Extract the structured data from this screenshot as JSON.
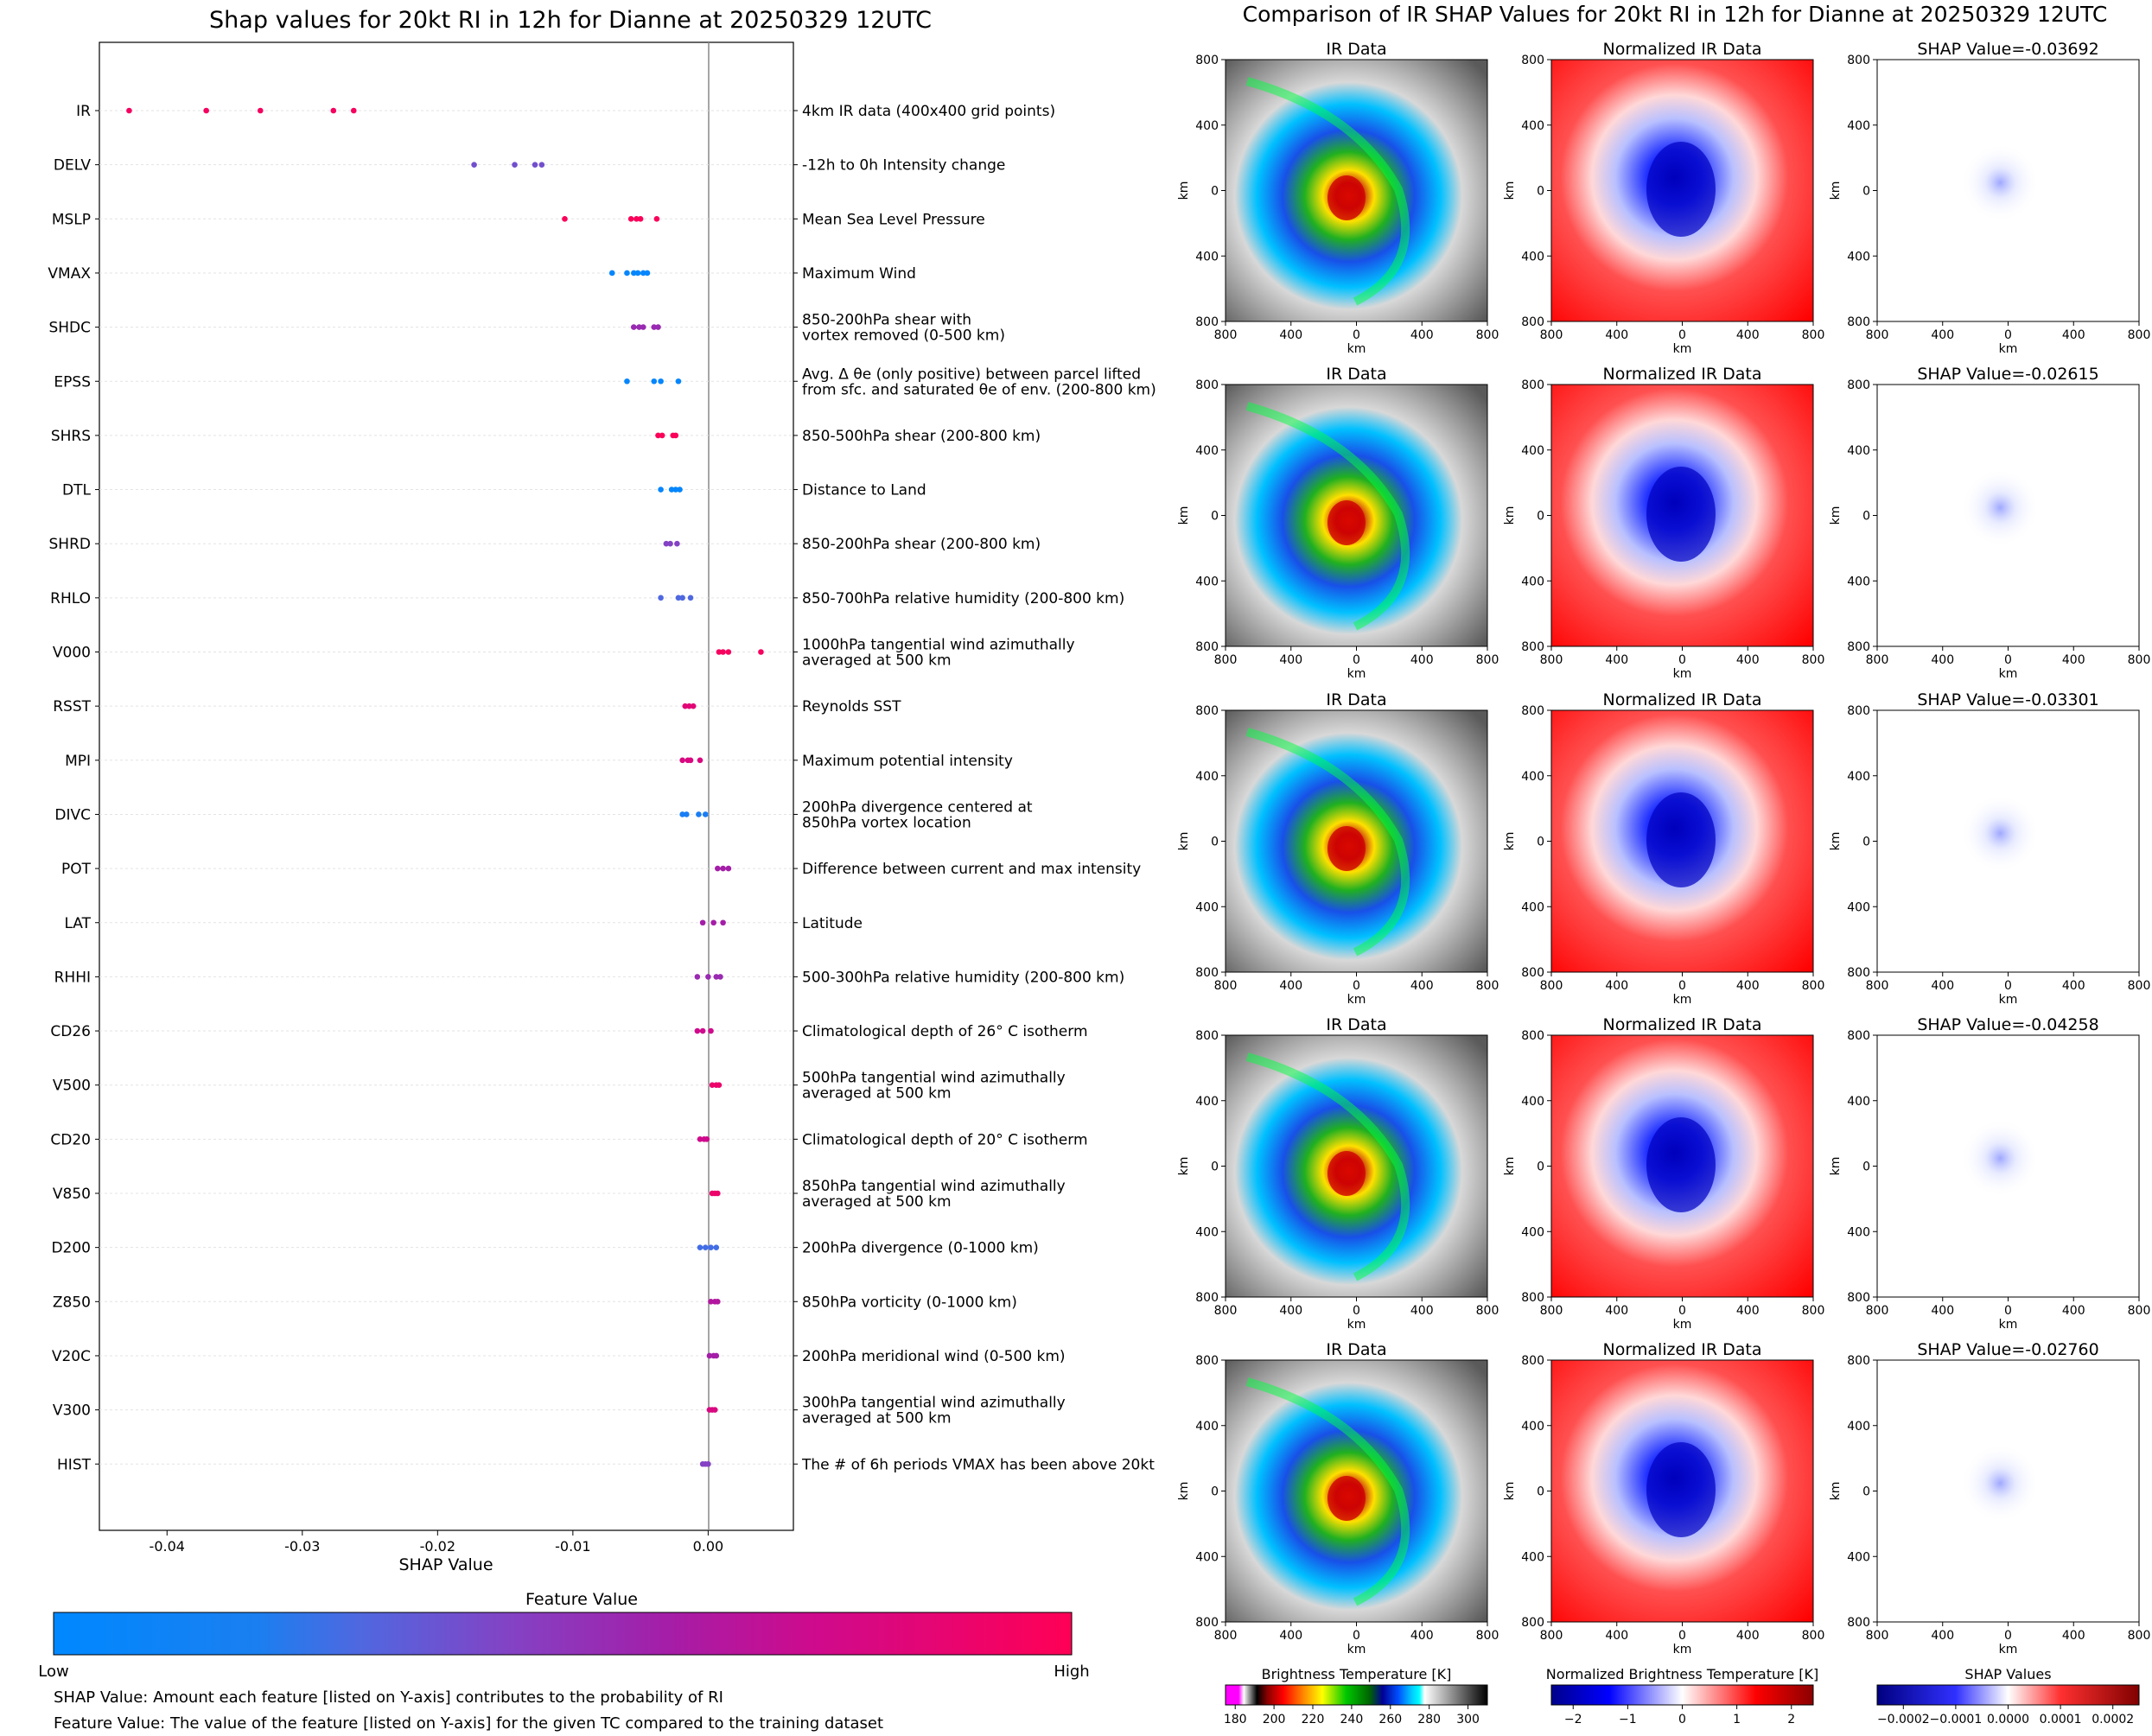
{
  "left_title": "Shap values for 20kt RI in 12h for Dianne at 20250329 12UTC",
  "right_title": "Comparison of IR SHAP Values for 20kt RI in 12h for Dianne at 20250329 12UTC",
  "xlabel": "SHAP Value",
  "colorbar_title": "Feature Value",
  "colorbar_low": "Low",
  "colorbar_high": "High",
  "footnote1": "SHAP Value: Amount each feature [listed on Y-axis] contributes to the probability of RI",
  "footnote2": "Feature Value: The value of the feature [listed on Y-axis] for the given TC compared to the training dataset",
  "chart_data": [
    {
      "type": "scatter",
      "title": "Shap values for 20kt RI in 12h for Dianne at 20250329 12UTC",
      "xlabel": "SHAP Value",
      "xlim": [
        -0.045,
        0.0063
      ],
      "x_ticks": [
        "-0.04",
        "-0.03",
        "-0.02",
        "-0.01",
        "0.00"
      ],
      "vertical_line_at": 0,
      "colormap": {
        "low": "#0088ff",
        "high": "#ff0055",
        "title": "Feature Value"
      },
      "features": [
        {
          "name": "IR",
          "desc": [
            "4km IR data (400x400 grid points)"
          ],
          "points": [
            [
              -0.0428,
              0.95
            ],
            [
              -0.0371,
              0.95
            ],
            [
              -0.0331,
              0.95
            ],
            [
              -0.0277,
              0.95
            ],
            [
              -0.0262,
              0.95
            ]
          ]
        },
        {
          "name": "DELV",
          "desc": [
            "-12h to 0h Intensity change"
          ],
          "points": [
            [
              -0.0173,
              0.4
            ],
            [
              -0.0143,
              0.4
            ],
            [
              -0.0128,
              0.4
            ],
            [
              -0.0123,
              0.4
            ]
          ]
        },
        {
          "name": "MSLP",
          "desc": [
            "Mean Sea Level Pressure"
          ],
          "points": [
            [
              -0.0106,
              0.98
            ],
            [
              -0.0057,
              0.98
            ],
            [
              -0.0053,
              0.98
            ],
            [
              -0.005,
              0.98
            ],
            [
              -0.0038,
              0.98
            ]
          ]
        },
        {
          "name": "VMAX",
          "desc": [
            "Maximum Wind"
          ],
          "points": [
            [
              -0.0071,
              0.02
            ],
            [
              -0.006,
              0.02
            ],
            [
              -0.0055,
              0.02
            ],
            [
              -0.0052,
              0.02
            ],
            [
              -0.0048,
              0.02
            ],
            [
              -0.0045,
              0.02
            ]
          ]
        },
        {
          "name": "SHDC",
          "desc": [
            "850-200hPa shear with",
            "vortex removed (0-500 km)"
          ],
          "points": [
            [
              -0.0055,
              0.55
            ],
            [
              -0.0051,
              0.55
            ],
            [
              -0.0048,
              0.55
            ],
            [
              -0.004,
              0.55
            ],
            [
              -0.0037,
              0.55
            ]
          ]
        },
        {
          "name": "EPSS",
          "desc": [
            "Avg. Δ θe (only positive) between parcel lifted",
            "from sfc. and saturated θe of env. (200-800 km)"
          ],
          "points": [
            [
              -0.006,
              0.02
            ],
            [
              -0.004,
              0.02
            ],
            [
              -0.0035,
              0.02
            ],
            [
              -0.0022,
              0.02
            ]
          ]
        },
        {
          "name": "SHRS",
          "desc": [
            "850-500hPa shear (200-800 km)"
          ],
          "points": [
            [
              -0.0037,
              0.98
            ],
            [
              -0.0034,
              0.98
            ],
            [
              -0.0026,
              0.98
            ],
            [
              -0.0024,
              0.98
            ]
          ]
        },
        {
          "name": "DTL",
          "desc": [
            "Distance to Land"
          ],
          "points": [
            [
              -0.0035,
              0.02
            ],
            [
              -0.0027,
              0.02
            ],
            [
              -0.0024,
              0.02
            ],
            [
              -0.0021,
              0.02
            ]
          ]
        },
        {
          "name": "SHRD",
          "desc": [
            "850-200hPa shear (200-800 km)"
          ],
          "points": [
            [
              -0.0031,
              0.45
            ],
            [
              -0.0028,
              0.45
            ],
            [
              -0.0023,
              0.45
            ]
          ]
        },
        {
          "name": "RHLO",
          "desc": [
            "850-700hPa relative humidity (200-800 km)"
          ],
          "points": [
            [
              -0.0035,
              0.3
            ],
            [
              -0.0022,
              0.3
            ],
            [
              -0.0019,
              0.3
            ],
            [
              -0.0013,
              0.3
            ]
          ]
        },
        {
          "name": "V000",
          "desc": [
            "1000hPa tangential wind azimuthally",
            "averaged at 500 km"
          ],
          "points": [
            [
              0.0008,
              0.96
            ],
            [
              0.0011,
              0.96
            ],
            [
              0.0015,
              0.96
            ],
            [
              0.0039,
              0.96
            ]
          ]
        },
        {
          "name": "RSST",
          "desc": [
            "Reynolds SST"
          ],
          "points": [
            [
              -0.0017,
              0.85
            ],
            [
              -0.0014,
              0.85
            ],
            [
              -0.0011,
              0.85
            ]
          ]
        },
        {
          "name": "MPI",
          "desc": [
            "Maximum potential intensity"
          ],
          "points": [
            [
              -0.0019,
              0.8
            ],
            [
              -0.0015,
              0.8
            ],
            [
              -0.0013,
              0.8
            ],
            [
              -0.0006,
              0.8
            ]
          ]
        },
        {
          "name": "DIVC",
          "desc": [
            "200hPa divergence centered at",
            "850hPa vortex location"
          ],
          "points": [
            [
              -0.0019,
              0.1
            ],
            [
              -0.0016,
              0.1
            ],
            [
              -0.0007,
              0.1
            ],
            [
              -0.0002,
              0.1
            ]
          ]
        },
        {
          "name": "POT",
          "desc": [
            "Difference between current and max intensity"
          ],
          "points": [
            [
              0.0007,
              0.6
            ],
            [
              0.0011,
              0.6
            ],
            [
              0.0015,
              0.6
            ]
          ]
        },
        {
          "name": "LAT",
          "desc": [
            "Latitude"
          ],
          "points": [
            [
              -0.0004,
              0.6
            ],
            [
              0.0004,
              0.6
            ],
            [
              0.0011,
              0.6
            ]
          ]
        },
        {
          "name": "RHHI",
          "desc": [
            "500-300hPa relative humidity (200-800 km)"
          ],
          "points": [
            [
              -0.0008,
              0.55
            ],
            [
              0.0,
              0.55
            ],
            [
              0.0006,
              0.55
            ],
            [
              0.0009,
              0.55
            ]
          ]
        },
        {
          "name": "CD26",
          "desc": [
            "Climatological depth of 26° C isotherm"
          ],
          "points": [
            [
              -0.0008,
              0.75
            ],
            [
              -0.0004,
              0.75
            ],
            [
              0.0002,
              0.75
            ]
          ]
        },
        {
          "name": "V500",
          "desc": [
            "500hPa tangential wind azimuthally",
            "averaged at 500 km"
          ],
          "points": [
            [
              0.0003,
              0.9
            ],
            [
              0.0006,
              0.9
            ],
            [
              0.0008,
              0.9
            ]
          ]
        },
        {
          "name": "CD20",
          "desc": [
            "Climatological depth of 20° C isotherm"
          ],
          "points": [
            [
              -0.0006,
              0.75
            ],
            [
              -0.0003,
              0.75
            ],
            [
              -0.0001,
              0.75
            ]
          ]
        },
        {
          "name": "V850",
          "desc": [
            "850hPa tangential wind azimuthally",
            "averaged at 500 km"
          ],
          "points": [
            [
              0.0003,
              0.9
            ],
            [
              0.0005,
              0.9
            ],
            [
              0.0007,
              0.9
            ]
          ]
        },
        {
          "name": "D200",
          "desc": [
            "200hPa divergence (0-1000 km)"
          ],
          "points": [
            [
              -0.0006,
              0.25
            ],
            [
              -0.0002,
              0.25
            ],
            [
              0.0002,
              0.25
            ],
            [
              0.0006,
              0.25
            ]
          ]
        },
        {
          "name": "Z850",
          "desc": [
            "850hPa vorticity (0-1000 km)"
          ],
          "points": [
            [
              0.0002,
              0.65
            ],
            [
              0.0005,
              0.65
            ],
            [
              0.0007,
              0.65
            ]
          ]
        },
        {
          "name": "V20C",
          "desc": [
            "200hPa meridional wind (0-500 km)"
          ],
          "points": [
            [
              0.0001,
              0.6
            ],
            [
              0.0004,
              0.6
            ],
            [
              0.0006,
              0.6
            ]
          ]
        },
        {
          "name": "V300",
          "desc": [
            "300hPa tangential wind azimuthally",
            "averaged at 500 km"
          ],
          "points": [
            [
              0.0001,
              0.8
            ],
            [
              0.0003,
              0.8
            ],
            [
              0.0005,
              0.8
            ]
          ]
        },
        {
          "name": "HIST",
          "desc": [
            "The # of 6h periods VMAX has been above 20kt"
          ],
          "points": [
            [
              -0.0004,
              0.45
            ],
            [
              -0.0002,
              0.45
            ],
            [
              0.0,
              0.45
            ]
          ]
        }
      ]
    },
    {
      "type": "heatmap",
      "title": "Comparison of IR SHAP Values for 20kt RI in 12h for Dianne at 20250329 12UTC",
      "panel_titles": [
        "IR Data",
        "Normalized IR Data"
      ],
      "shap_titles": [
        "SHAP Value=-0.03692",
        "SHAP Value=-0.02615",
        "SHAP Value=-0.03301",
        "SHAP Value=-0.04258",
        "SHAP Value=-0.02760"
      ],
      "axis_label": "km",
      "axis_ticks": [
        "800",
        "400",
        "0",
        "400",
        "800"
      ],
      "colorbars": [
        {
          "label": "Brightness Temperature [K]",
          "ticks": [
            "180",
            "200",
            "220",
            "240",
            "260",
            "280",
            "300"
          ],
          "range": [
            175,
            310
          ]
        },
        {
          "label": "Normalized Brightness Temperature [K]",
          "ticks": [
            "−2",
            "−1",
            "0",
            "1",
            "2"
          ],
          "range": [
            -2.4,
            2.4
          ]
        },
        {
          "label": "SHAP Values",
          "ticks": [
            "−0.0002",
            "−0.0001",
            "0.0000",
            "0.0001",
            "0.0002"
          ],
          "range": [
            -0.00025,
            0.00025
          ]
        }
      ]
    }
  ]
}
